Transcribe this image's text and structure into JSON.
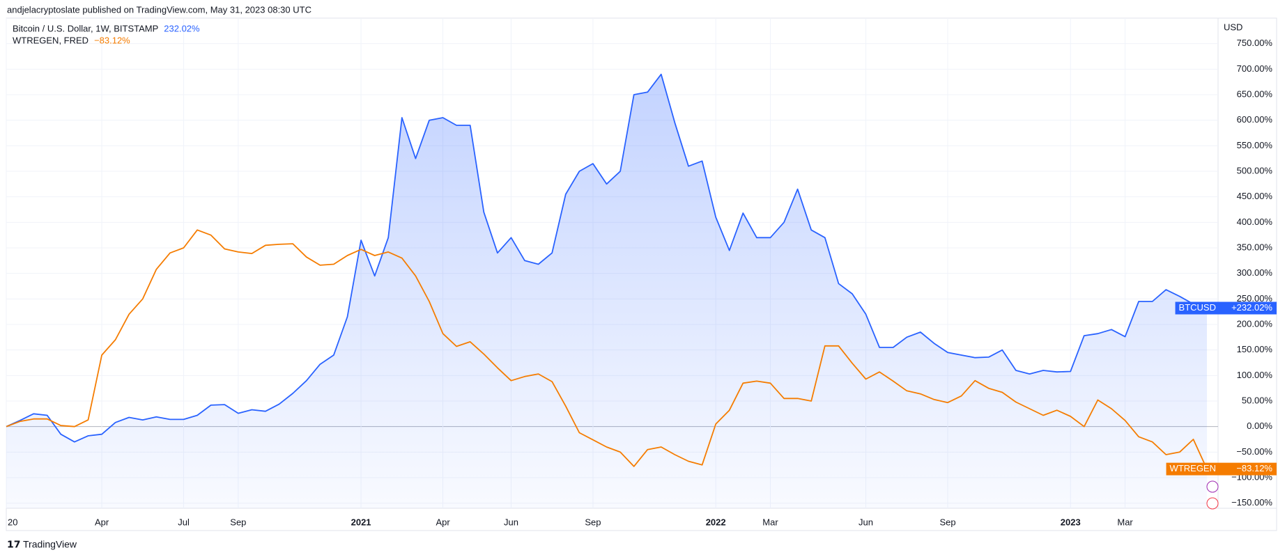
{
  "header": {
    "publisher": "andjelacryptoslate published on TradingView.com, May 31, 2023 08:30 UTC"
  },
  "footer": {
    "brand": "TradingView"
  },
  "chart_data": {
    "type": "line",
    "y_unit": "USD",
    "categories": [
      "20",
      null,
      null,
      null,
      null,
      null,
      null,
      "Apr",
      null,
      null,
      null,
      null,
      null,
      "Jul",
      null,
      null,
      null,
      "Sep",
      null,
      null,
      null,
      null,
      null,
      null,
      null,
      null,
      "2021",
      null,
      null,
      null,
      null,
      null,
      "Apr",
      null,
      null,
      null,
      null,
      "Jun",
      null,
      null,
      null,
      null,
      null,
      "Sep",
      null,
      null,
      null,
      null,
      null,
      null,
      null,
      null,
      "2022",
      null,
      null,
      null,
      "Mar",
      null,
      null,
      null,
      null,
      null,
      null,
      "Jun",
      null,
      null,
      null,
      null,
      null,
      "Sep",
      null,
      null,
      null,
      null,
      null,
      null,
      null,
      null,
      "2023",
      null,
      null,
      null,
      "Mar",
      null,
      null,
      null,
      null,
      null,
      null
    ],
    "series": [
      {
        "name": "Bitcoin / U.S. Dollar, 1W, BITSTAMP",
        "legend_value": "232.02%",
        "tag": "BTCUSD",
        "last_value_label": "+232.02%",
        "color": "#2962ff",
        "area": true,
        "values": [
          0,
          12,
          25,
          22,
          -15,
          -30,
          -18,
          -15,
          8,
          18,
          13,
          19,
          14,
          14,
          22,
          42,
          43,
          26,
          33,
          30,
          44,
          65,
          90,
          122,
          140,
          215,
          365,
          295,
          370,
          605,
          525,
          600,
          605,
          590,
          590,
          420,
          340,
          370,
          325,
          318,
          340,
          455,
          500,
          515,
          475,
          500,
          650,
          655,
          690,
          595,
          510,
          520,
          410,
          345,
          418,
          370,
          370,
          400,
          465,
          385,
          370,
          280,
          260,
          220,
          155,
          155,
          175,
          185,
          163,
          145,
          140,
          135,
          136,
          150,
          110,
          103,
          110,
          107,
          108,
          178,
          182,
          190,
          176,
          245,
          245,
          268,
          255,
          240,
          232.02
        ]
      },
      {
        "name": "WTREGEN, FRED",
        "legend_value": "−83.12%",
        "tag": "WTREGEN",
        "last_value_label": "−83.12%",
        "color": "#f57c00",
        "area": false,
        "values": [
          0,
          10,
          15,
          15,
          2,
          0,
          13,
          140,
          170,
          220,
          250,
          308,
          340,
          350,
          385,
          375,
          348,
          342,
          339,
          355,
          357,
          358,
          332,
          316,
          318,
          335,
          347,
          335,
          342,
          330,
          295,
          245,
          182,
          157,
          166,
          142,
          115,
          90,
          98,
          103,
          88,
          40,
          -12,
          -26,
          -40,
          -50,
          -78,
          -45,
          -40,
          -55,
          -68,
          -75,
          5,
          32,
          85,
          89,
          85,
          55,
          55,
          50,
          158,
          158,
          124,
          93,
          107,
          89,
          70,
          64,
          53,
          47,
          60,
          90,
          75,
          67,
          48,
          35,
          22,
          32,
          20,
          0,
          52,
          35,
          12,
          -20,
          -30,
          -55,
          -50,
          -25,
          -83.12
        ]
      }
    ],
    "ylim": [
      -160,
      800
    ],
    "yticks": [
      {
        "value": -150,
        "label": "−150.00%"
      },
      {
        "value": -100,
        "label": "−100.00%"
      },
      {
        "value": -50,
        "label": "−50.00%"
      },
      {
        "value": 0,
        "label": "0.00%"
      },
      {
        "value": 50,
        "label": "50.00%"
      },
      {
        "value": 100,
        "label": "100.00%"
      },
      {
        "value": 150,
        "label": "150.00%"
      },
      {
        "value": 200,
        "label": "200.00%"
      },
      {
        "value": 250,
        "label": "250.00%"
      },
      {
        "value": 300,
        "label": "300.00%"
      },
      {
        "value": 350,
        "label": "350.00%"
      },
      {
        "value": 400,
        "label": "400.00%"
      },
      {
        "value": 450,
        "label": "450.00%"
      },
      {
        "value": 500,
        "label": "500.00%"
      },
      {
        "value": 550,
        "label": "550.00%"
      },
      {
        "value": 600,
        "label": "600.00%"
      },
      {
        "value": 650,
        "label": "650.00%"
      },
      {
        "value": 700,
        "label": "700.00%"
      },
      {
        "value": 750,
        "label": "750.00%"
      }
    ],
    "grid": true
  }
}
